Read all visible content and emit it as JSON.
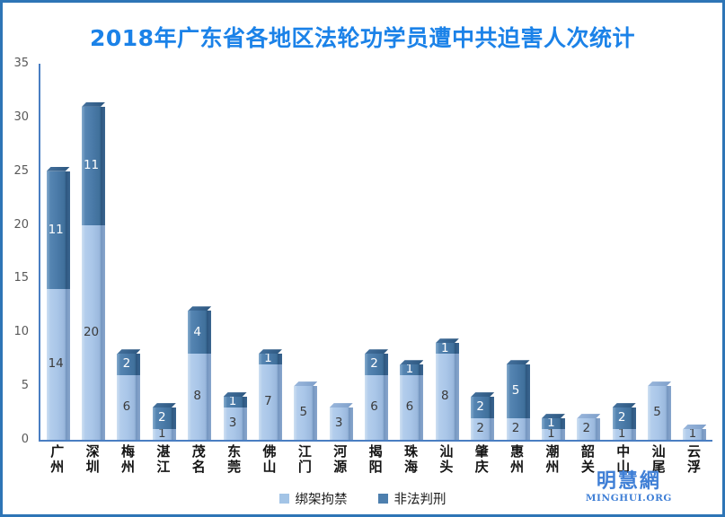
{
  "title": "2018年广东省各地区法轮功学员遭中共迫害人次统计",
  "watermark": {
    "cn": "明慧網",
    "en": "MINGHUI.ORG"
  },
  "colors": {
    "title": "#1b82e8",
    "frame_border": "#2e75b6",
    "axis_line": "#4a7ec2",
    "tick_label": "#595959",
    "series_light": "#a9c6e8",
    "series_dark": "#44749f",
    "watermark": "#3f7fd6"
  },
  "chart_data": {
    "type": "bar",
    "stacked": true,
    "title": "2018年广东省各地区法轮功学员遭中共迫害人次统计",
    "categories": [
      "广州",
      "深圳",
      "梅州",
      "湛江",
      "茂名",
      "东莞",
      "佛山",
      "江门",
      "河源",
      "揭阳",
      "珠海",
      "汕头",
      "肇庆",
      "惠州",
      "潮州",
      "韶关",
      "中山",
      "汕尾",
      "云浮"
    ],
    "series": [
      {
        "name": "绑架拘禁",
        "tone": "light",
        "values": [
          14,
          20,
          6,
          1,
          8,
          3,
          7,
          5,
          3,
          6,
          6,
          8,
          2,
          2,
          1,
          2,
          1,
          5,
          1
        ]
      },
      {
        "name": "非法判刑",
        "tone": "dark",
        "values": [
          11,
          11,
          2,
          2,
          4,
          1,
          1,
          0,
          0,
          2,
          1,
          1,
          2,
          5,
          1,
          0,
          2,
          0,
          0
        ]
      }
    ],
    "totals": [
      25,
      31,
      8,
      3,
      12,
      4,
      8,
      5,
      3,
      8,
      7,
      9,
      4,
      7,
      2,
      2,
      3,
      5,
      1
    ],
    "xlabel": "",
    "ylabel": "",
    "ylim": [
      0,
      35
    ],
    "yticks": [
      0,
      5,
      10,
      15,
      20,
      25,
      30,
      35
    ],
    "grid": false,
    "data_labels": true,
    "legend_position": "bottom"
  }
}
